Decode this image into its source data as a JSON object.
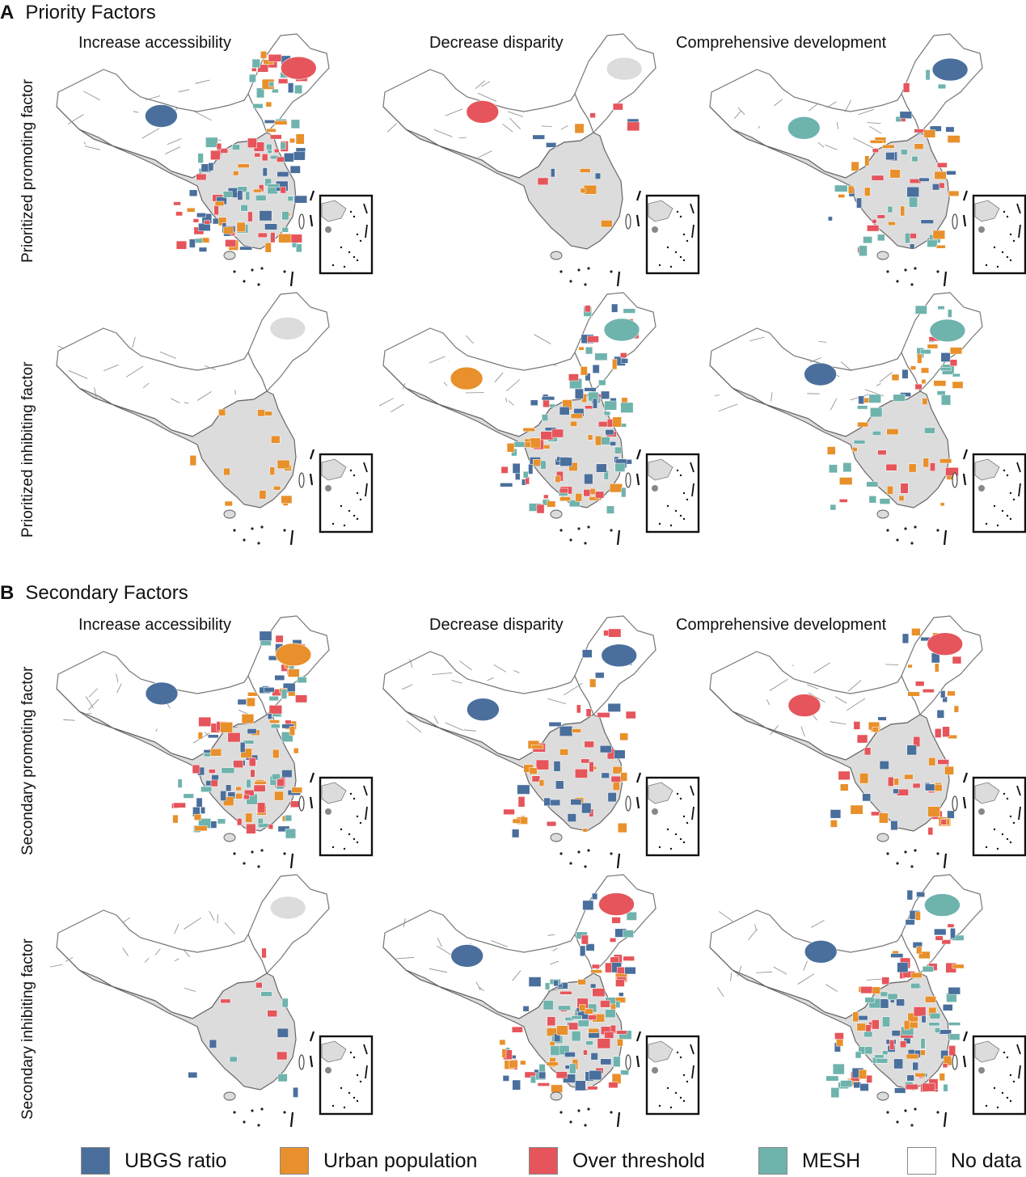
{
  "sections": [
    {
      "letter": "A",
      "title": "Priority Factors"
    },
    {
      "letter": "B",
      "title": "Secondary Factors"
    }
  ],
  "columns": [
    "Increase accessibility",
    "Decrease disparity",
    "Comprehensive development"
  ],
  "rows": [
    "Prioritized promoting factor",
    "Prioritized inhibiting factor",
    "Secondary promoting factor",
    "Secondary inhibiting factor"
  ],
  "legend": [
    {
      "key": "ubgs",
      "label": "UBGS ratio",
      "color": "#4a6f9c"
    },
    {
      "key": "urban",
      "label": "Urban population",
      "color": "#e8902b"
    },
    {
      "key": "over",
      "label": "Over threshold",
      "color": "#e5555b"
    },
    {
      "key": "mesh",
      "label": "MESH",
      "color": "#6fb3ad"
    },
    {
      "key": "nodata",
      "label": "No data",
      "color": "#ffffff"
    }
  ],
  "colors": {
    "grey_region": "#dcdcdc",
    "border": "#666666"
  },
  "panels": [
    {
      "row": 0,
      "col": 0,
      "dominant": [
        "over",
        "urban",
        "ubgs",
        "mesh"
      ],
      "fill": "mixed"
    },
    {
      "row": 0,
      "col": 1,
      "dominant": [
        "ubgs",
        "urban",
        "over"
      ],
      "fill": "mostly-grey"
    },
    {
      "row": 0,
      "col": 2,
      "dominant": [
        "ubgs",
        "urban",
        "over",
        "mesh"
      ],
      "fill": "grey-mixed"
    },
    {
      "row": 1,
      "col": 0,
      "dominant": [
        "urban"
      ],
      "fill": "mostly-grey"
    },
    {
      "row": 1,
      "col": 1,
      "dominant": [
        "mesh",
        "urban",
        "ubgs",
        "over"
      ],
      "fill": "mixed"
    },
    {
      "row": 1,
      "col": 2,
      "dominant": [
        "mesh",
        "urban",
        "ubgs",
        "over"
      ],
      "fill": "grey-mixed"
    },
    {
      "row": 2,
      "col": 0,
      "dominant": [
        "urban",
        "over",
        "mesh",
        "ubgs"
      ],
      "fill": "mixed"
    },
    {
      "row": 2,
      "col": 1,
      "dominant": [
        "ubgs",
        "over",
        "urban"
      ],
      "fill": "grey-mixed"
    },
    {
      "row": 2,
      "col": 2,
      "dominant": [
        "over",
        "urban",
        "ubgs"
      ],
      "fill": "grey-mixed"
    },
    {
      "row": 3,
      "col": 0,
      "dominant": [
        "urban",
        "over",
        "mesh",
        "ubgs"
      ],
      "fill": "mostly-grey"
    },
    {
      "row": 3,
      "col": 1,
      "dominant": [
        "over",
        "urban",
        "ubgs",
        "mesh"
      ],
      "fill": "mixed"
    },
    {
      "row": 3,
      "col": 2,
      "dominant": [
        "mesh",
        "over",
        "urban",
        "ubgs"
      ],
      "fill": "mixed"
    }
  ]
}
